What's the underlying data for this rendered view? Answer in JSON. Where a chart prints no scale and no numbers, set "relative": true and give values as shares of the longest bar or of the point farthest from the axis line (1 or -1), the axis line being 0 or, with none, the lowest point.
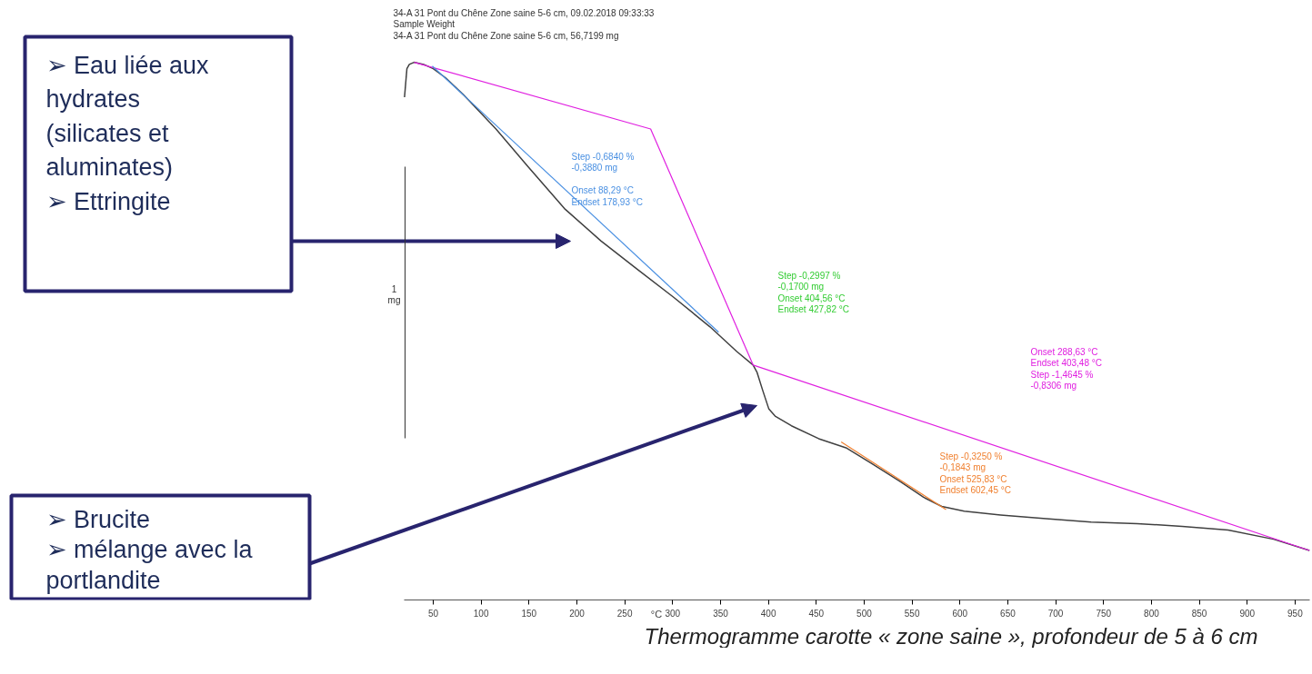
{
  "chart_data": {
    "type": "line",
    "relative": true,
    "xlabel": "°C",
    "xlim": [
      20,
      965
    ],
    "xticks": [
      50,
      100,
      150,
      200,
      250,
      300,
      350,
      400,
      450,
      500,
      550,
      600,
      650,
      700,
      750,
      800,
      850,
      900,
      950
    ],
    "grid": false,
    "marker": "none",
    "line_style": "solid",
    "series": [
      {
        "color": "#404040",
        "x": [
          20,
          22.5,
          25,
          30,
          40,
          50,
          63,
          82,
          115.5,
          149,
          187,
          225,
          263,
          301,
          339,
          367,
          384,
          388,
          394,
          400.5,
          407,
          424,
          452.5,
          481,
          509.5,
          538,
          562,
          581,
          604.5,
          642.5,
          690,
          737,
          785,
          832,
          880,
          927.5,
          965
        ],
        "values": [
          0.935,
          0.988,
          0.996,
          1.0,
          0.996,
          0.988,
          0.971,
          0.939,
          0.876,
          0.806,
          0.728,
          0.668,
          0.615,
          0.563,
          0.508,
          0.462,
          0.437,
          0.424,
          0.39,
          0.355,
          0.342,
          0.324,
          0.3,
          0.283,
          0.252,
          0.22,
          0.191,
          0.174,
          0.165,
          0.158,
          0.151,
          0.145,
          0.142,
          0.137,
          0.13,
          0.113,
          0.092
        ]
      },
      {
        "color": "#e020e0",
        "x": [
          30,
          277,
          384,
          965
        ],
        "values": [
          1.0,
          0.876,
          0.437,
          0.092
        ]
      },
      {
        "color": "#4a90e2",
        "x": [
          49,
          348
        ],
        "values": [
          0.993,
          0.498
        ]
      },
      {
        "color": "#f08030",
        "x": [
          476,
          585.5
        ],
        "values": [
          0.294,
          0.168
        ]
      }
    ],
    "annotations": [
      "34-A 31 Pont du Chêne Zone saine 5-6 cm, 09.02.2018 09:33:33\nSample Weight\n34-A 31 Pont du Chêne Zone saine 5-6 cm, 56,7199 mg",
      "1\nmg",
      "Step   -0,6840 %\n           -0,3880 mg\n\n  Onset    88,29 °C\n  Endset   178,93 °C",
      "Step   -0,2997 %\n           -0,1700 mg\n  Onset    404,56 °C\n  Endset   427,82 °C",
      "Onset    288,63 °C\nEndset   403,48 °C\n   Step   -1,4645 %\n             -0,8306 mg",
      "Step   -0,3250 %\n           -0,1843 mg\n                              Onset    525,83 °C\n                              Endset   602,45 °C",
      "➢  Eau liée aux\n     hydrates\n     (silicates et\n     aluminates)\n➢  Ettringite",
      "➢  Brucite\n➢  mélange avec la\n     portlandite",
      "Thermogramme carotte « zone saine », profondeur de 5 à 6 cm"
    ]
  }
}
